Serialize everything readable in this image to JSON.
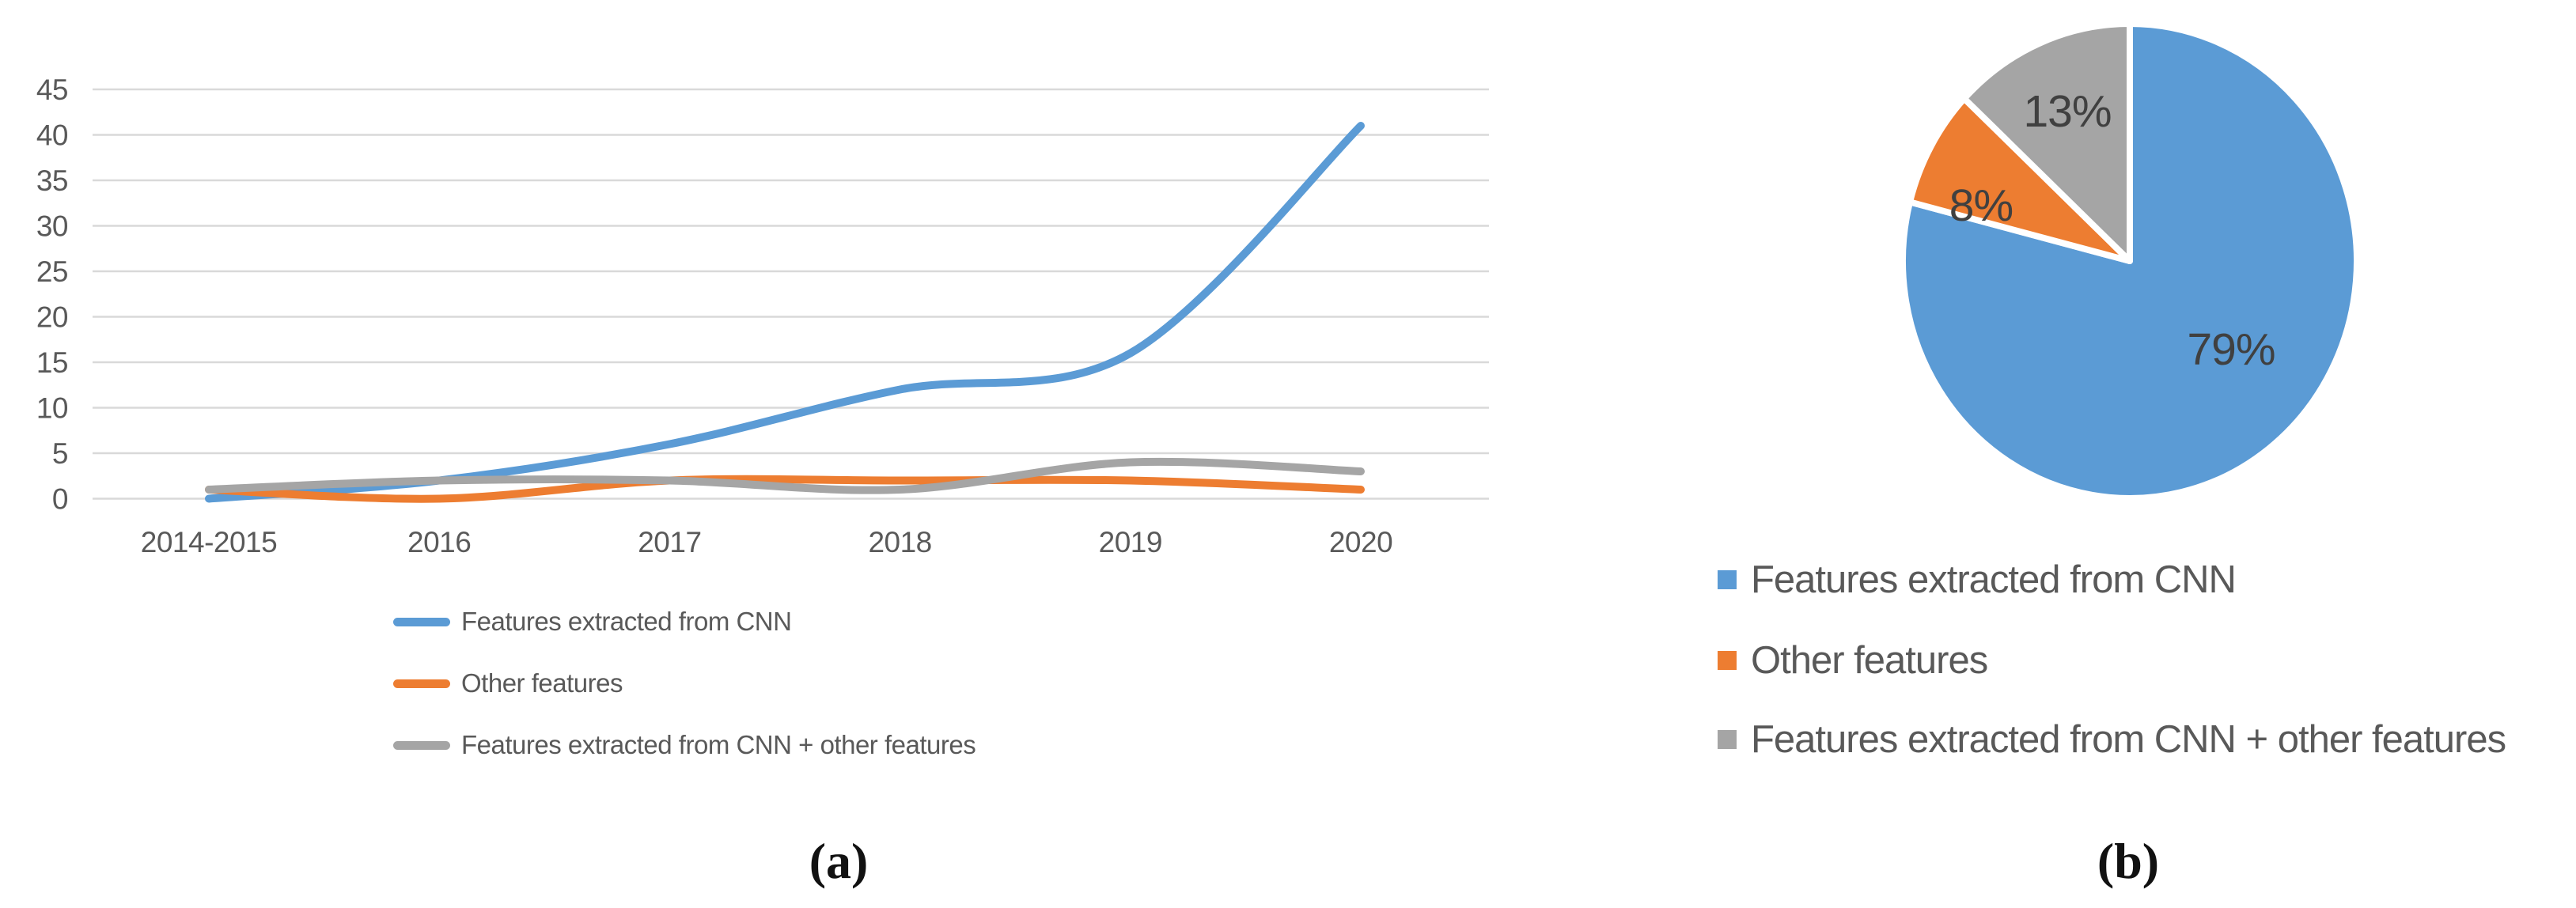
{
  "captions": {
    "a": "(a)",
    "b": "(b)"
  },
  "palette": {
    "blue": "#5B9BD5",
    "orange": "#ED7D31",
    "gray": "#A5A5A5"
  },
  "text_colors": {
    "axis": "#595959",
    "legend": "#595959",
    "pie_label": "#404040",
    "gridline": "#D9D9D9"
  },
  "chart_data": [
    {
      "type": "line",
      "panel": "a",
      "title": "",
      "xlabel": "",
      "ylabel": "",
      "categories": [
        "2014-2015",
        "2016",
        "2017",
        "2018",
        "2019",
        "2020"
      ],
      "yticks": [
        0,
        5,
        10,
        15,
        20,
        25,
        30,
        35,
        40,
        45
      ],
      "ylim": [
        0,
        45
      ],
      "grid": "horizontal",
      "line_style": "smooth",
      "legend_position": "bottom-left-vertical",
      "series": [
        {
          "name": "Features extracted from CNN",
          "color_key": "blue",
          "values": [
            0,
            2,
            6,
            12,
            16,
            41
          ]
        },
        {
          "name": "Other features",
          "color_key": "orange",
          "values": [
            1,
            0,
            2,
            2,
            2,
            1
          ]
        },
        {
          "name": "Features extracted from CNN + other features",
          "color_key": "gray",
          "values": [
            1,
            2,
            2,
            1,
            4,
            3
          ]
        }
      ]
    },
    {
      "type": "pie",
      "panel": "b",
      "title": "",
      "start_angle": "12-oclock",
      "direction": "clockwise",
      "legend_position": "bottom-left-vertical",
      "slices": [
        {
          "label": "Features extracted from CNN",
          "percent": 79,
          "label_text": "79%",
          "color_key": "blue"
        },
        {
          "label": "Other features",
          "percent": 8,
          "label_text": "8%",
          "color_key": "orange"
        },
        {
          "label": "Features extracted from CNN + other features",
          "percent": 13,
          "label_text": "13%",
          "color_key": "gray"
        }
      ]
    }
  ]
}
